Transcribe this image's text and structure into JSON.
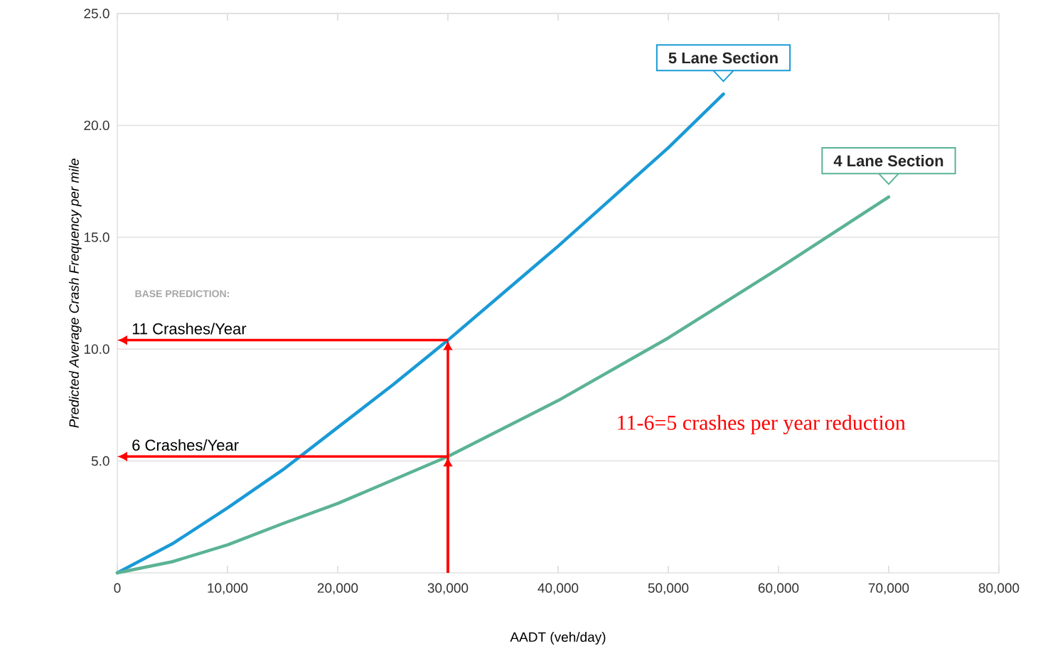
{
  "chart_data": {
    "type": "line",
    "xlabel": "AADT (veh/day)",
    "ylabel": "Predicted Average Crash Frequency per mile",
    "xlim": [
      0,
      80000
    ],
    "ylim": [
      0,
      25
    ],
    "xticks": [
      {
        "value": 0,
        "label": "0"
      },
      {
        "value": 10000,
        "label": "10,000"
      },
      {
        "value": 20000,
        "label": "20,000"
      },
      {
        "value": 30000,
        "label": "30,000"
      },
      {
        "value": 40000,
        "label": "40,000"
      },
      {
        "value": 50000,
        "label": "50,000"
      },
      {
        "value": 60000,
        "label": "60,000"
      },
      {
        "value": 70000,
        "label": "70,000"
      },
      {
        "value": 80000,
        "label": "80,000"
      }
    ],
    "yticks": [
      {
        "value": 5,
        "label": "5.0"
      },
      {
        "value": 10,
        "label": "10.0"
      },
      {
        "value": 15,
        "label": "15.0"
      },
      {
        "value": 20,
        "label": "20.0"
      },
      {
        "value": 25,
        "label": "25.0"
      }
    ],
    "grid": "y",
    "series": [
      {
        "name": "5 Lane Section",
        "color": "#1a9ad6",
        "x": [
          0,
          5000,
          10000,
          15000,
          20000,
          25000,
          30000,
          35000,
          40000,
          45000,
          50000,
          55000
        ],
        "values": [
          0,
          1.3,
          2.9,
          4.6,
          6.5,
          8.4,
          10.4,
          12.5,
          14.6,
          16.8,
          19.0,
          21.4
        ]
      },
      {
        "name": "4 Lane Section",
        "color": "#5bb394",
        "x": [
          0,
          5000,
          10000,
          15000,
          20000,
          30000,
          40000,
          50000,
          60000,
          70000
        ],
        "values": [
          0,
          0.5,
          1.25,
          2.2,
          3.1,
          5.2,
          7.7,
          10.5,
          13.6,
          16.8
        ]
      }
    ],
    "annotations": [
      "BASE PREDICTION:",
      {
        "text": "11 Crashes/Year",
        "x": 30000,
        "y": 10.4
      },
      {
        "text": "6 Crashes/Year",
        "x": 30000,
        "y": 5.2
      },
      "11-6=5 crashes per year reduction"
    ]
  }
}
